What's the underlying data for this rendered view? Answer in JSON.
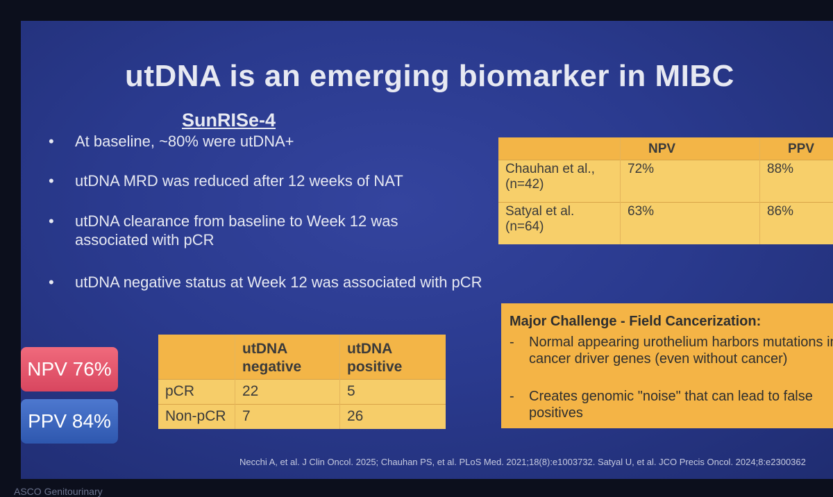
{
  "title": "utDNA is an emerging biomarker in MIBC",
  "subtitle": "SunRISe-4",
  "bullet_char": "•",
  "bullets": [
    "At baseline, ~80% were  utDNA+",
    "utDNA MRD was reduced after 12 weeks of NAT",
    "utDNA clearance from baseline to Week 12 was associated with pCR",
    "utDNA negative status at Week 12 was associated with pCR"
  ],
  "studies_table": {
    "headers": [
      "",
      "NPV",
      "PPV"
    ],
    "rows": [
      {
        "study": "Chauhan et al., (n=42)",
        "npv": "72%",
        "ppv": "88%"
      },
      {
        "study": "Satyal et al. (n=64)",
        "npv": "63%",
        "ppv": "86%"
      }
    ]
  },
  "stats": {
    "npv": "NPV 76%",
    "ppv": "PPV 84%"
  },
  "contingency_table": {
    "headers": [
      "",
      "utDNA negative",
      "utDNA positive"
    ],
    "rows": [
      {
        "label": "pCR",
        "negative": "22",
        "positive": "5"
      },
      {
        "label": "Non-pCR",
        "negative": "7",
        "positive": "26"
      }
    ]
  },
  "challenge": {
    "title": "Major Challenge - Field Cancerization:",
    "dash": "-",
    "items": [
      "Normal appearing urothelium harbors mutations in cancer driver genes (even without cancer)",
      "Creates genomic \"noise\" that can lead to false positives"
    ]
  },
  "citation": "Necchi A, et al. J Clin Oncol. 2025; Chauhan PS, et al. PLoS Med. 2021;18(8):e1003732. Satyal U, et al. JCO Precis Oncol. 2024;8:e2300362",
  "footer_logo": "ASCO Genitourinary",
  "colors": {
    "slide_bg": "#2a3a8e",
    "table_header": "#f3b547",
    "table_body": "#f7cf6a",
    "npv_badge": "#e55a6e",
    "ppv_badge": "#3e68c0",
    "text_light": "#e7e9f2"
  }
}
